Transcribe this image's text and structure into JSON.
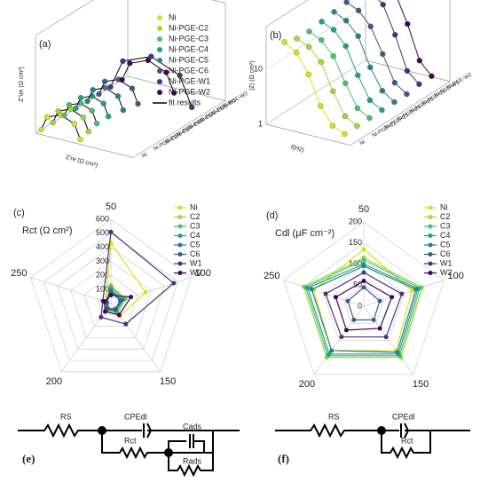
{
  "chart_data": [
    {
      "type": "nyquist3d",
      "panel": "(a)",
      "xlabel": "Z're (Ω cm²)",
      "ylabel": "Z''im (Ω cm²)",
      "fit_label": "fit results",
      "xlim": [
        0,
        300
      ],
      "ylim": [
        0,
        300
      ],
      "series": [
        {
          "name": "Ni",
          "color": "#d8e219",
          "x": [
            0,
            18,
            60,
            102,
            120
          ],
          "values": [
            0,
            43,
            60,
            43,
            0
          ]
        },
        {
          "name": "Ni-PGE-C2",
          "color": "#a0da39",
          "x": [
            0,
            17,
            55,
            94,
            110
          ],
          "values": [
            0,
            39,
            55,
            39,
            0
          ]
        },
        {
          "name": "Ni-PGE-C3",
          "color": "#4ac16d",
          "x": [
            0,
            15,
            50,
            85,
            100
          ],
          "values": [
            0,
            36,
            50,
            36,
            0
          ]
        },
        {
          "name": "Ni-PGE-C4",
          "color": "#1fa187",
          "x": [
            0,
            15,
            50,
            85,
            100
          ],
          "values": [
            0,
            36,
            50,
            36,
            0
          ]
        },
        {
          "name": "Ni-PGE-C5",
          "color": "#277f8e",
          "x": [
            0,
            17,
            55,
            94,
            110
          ],
          "values": [
            0,
            39,
            55,
            39,
            0
          ]
        },
        {
          "name": "Ni-PGE-C6",
          "color": "#365c8d",
          "x": [
            0,
            18,
            60,
            102,
            120
          ],
          "values": [
            0,
            43,
            60,
            43,
            0
          ]
        },
        {
          "name": "Ni-PGE-W1",
          "color": "#46327e",
          "x": [
            0,
            38,
            125,
            213,
            250
          ],
          "values": [
            0,
            89,
            125,
            89,
            0
          ]
        },
        {
          "name": "Ni-PGE-W2",
          "color": "#440154",
          "x": [
            0,
            24,
            80,
            136,
            160
          ],
          "values": [
            0,
            57,
            80,
            57,
            0
          ]
        }
      ]
    },
    {
      "type": "bode3d",
      "panel": "(b)",
      "xlabel": "f(Hz)",
      "ylabel": "|Z| (Ω cm²)",
      "xlim": [
        0.01,
        100000
      ],
      "ylim": [
        1,
        60
      ],
      "yticks": [
        1,
        10
      ],
      "log": true,
      "series": [
        {
          "name": "Ni",
          "color": "#d8e219",
          "x": [
            0.1,
            1,
            10,
            100,
            1000,
            10000
          ],
          "values": [
            30,
            22,
            10,
            3,
            1.5,
            1.2
          ]
        },
        {
          "name": "Ni-PGE-C2",
          "color": "#a0da39",
          "x": [
            0.1,
            1,
            10,
            100,
            1000,
            10000
          ],
          "values": [
            25,
            20,
            12,
            4,
            1.6,
            1.2
          ]
        },
        {
          "name": "Ni-PGE-C3",
          "color": "#4ac16d",
          "x": [
            0.1,
            1,
            10,
            100,
            1000,
            10000
          ],
          "values": [
            24,
            19,
            11,
            4,
            1.6,
            1.2
          ]
        },
        {
          "name": "Ni-PGE-C4",
          "color": "#1fa187",
          "x": [
            0.1,
            1,
            10,
            100,
            1000,
            10000
          ],
          "values": [
            26,
            21,
            12,
            4,
            1.6,
            1.2
          ]
        },
        {
          "name": "Ni-PGE-C5",
          "color": "#277f8e",
          "x": [
            0.1,
            1,
            10,
            100,
            1000,
            10000
          ],
          "values": [
            28,
            22,
            13,
            4,
            1.7,
            1.2
          ]
        },
        {
          "name": "Ni-PGE-C6",
          "color": "#365c8d",
          "x": [
            0.1,
            1,
            10,
            100,
            1000,
            10000
          ],
          "values": [
            30,
            24,
            14,
            5,
            1.7,
            1.2
          ]
        },
        {
          "name": "Ni-PGE-W1",
          "color": "#46327e",
          "x": [
            0.1,
            1,
            10,
            100,
            1000,
            10000
          ],
          "values": [
            45,
            38,
            25,
            8,
            2,
            1.3
          ]
        },
        {
          "name": "Ni-PGE-W2",
          "color": "#440154",
          "x": [
            0.1,
            1,
            10,
            100,
            1000,
            10000
          ],
          "values": [
            50,
            42,
            28,
            9,
            2.2,
            1.3
          ]
        }
      ]
    },
    {
      "type": "radar",
      "panel": "(c)",
      "ylabel": "Rct (Ω cm²)",
      "categories": [
        "50",
        "100",
        "150",
        "200",
        "250"
      ],
      "ylim": [
        0,
        600
      ],
      "yticks": [
        0,
        100,
        200,
        300,
        400,
        500,
        600
      ],
      "series": [
        {
          "name": "Ni",
          "color": "#d8e219",
          "values": [
            430,
            260,
            110,
            60,
            40
          ]
        },
        {
          "name": "C2",
          "color": "#a0da39",
          "values": [
            130,
            110,
            80,
            60,
            40
          ]
        },
        {
          "name": "C3",
          "color": "#4ac16d",
          "values": [
            120,
            100,
            70,
            55,
            40
          ]
        },
        {
          "name": "C4",
          "color": "#1fa187",
          "values": [
            100,
            90,
            60,
            50,
            35
          ]
        },
        {
          "name": "C5",
          "color": "#277f8e",
          "values": [
            90,
            80,
            55,
            45,
            35
          ]
        },
        {
          "name": "C6",
          "color": "#365c8d",
          "values": [
            80,
            70,
            50,
            40,
            30
          ]
        },
        {
          "name": "W1",
          "color": "#46327e",
          "values": [
            510,
            470,
            180,
            120,
            60
          ]
        },
        {
          "name": "W2",
          "color": "#440154",
          "values": [
            60,
            150,
            100,
            70,
            50
          ]
        }
      ]
    },
    {
      "type": "radar",
      "panel": "(d)",
      "ylabel": "Cdl (μF cm⁻²)",
      "categories": [
        "50",
        "100",
        "150",
        "200",
        "250"
      ],
      "ylim": [
        0,
        200
      ],
      "yticks": [
        0,
        50,
        100,
        150,
        200
      ],
      "series": [
        {
          "name": "Ni",
          "color": "#d8e219",
          "values": [
            135,
            120,
            130,
            130,
            125
          ]
        },
        {
          "name": "C2",
          "color": "#a0da39",
          "values": [
            115,
            145,
            150,
            150,
            150
          ]
        },
        {
          "name": "C3",
          "color": "#4ac16d",
          "values": [
            110,
            140,
            145,
            145,
            145
          ]
        },
        {
          "name": "C4",
          "color": "#1fa187",
          "values": [
            100,
            135,
            140,
            140,
            140
          ]
        },
        {
          "name": "C5",
          "color": "#277f8e",
          "values": [
            95,
            130,
            135,
            130,
            130
          ]
        },
        {
          "name": "C6",
          "color": "#365c8d",
          "values": [
            45,
            40,
            40,
            40,
            40
          ]
        },
        {
          "name": "W1",
          "color": "#46327e",
          "values": [
            80,
            95,
            90,
            90,
            95
          ]
        },
        {
          "name": "W2",
          "color": "#440154",
          "values": [
            60,
            70,
            65,
            70,
            70
          ]
        }
      ]
    }
  ],
  "circuits": {
    "e": {
      "label": "(e)",
      "rs": "RS",
      "cpe": "CPEdl",
      "rct": "Rct",
      "cads": "Cads",
      "rads": "Rads"
    },
    "f": {
      "label": "(f)",
      "rs": "RS",
      "cpe": "CPEdl",
      "rct": "Rct"
    }
  }
}
